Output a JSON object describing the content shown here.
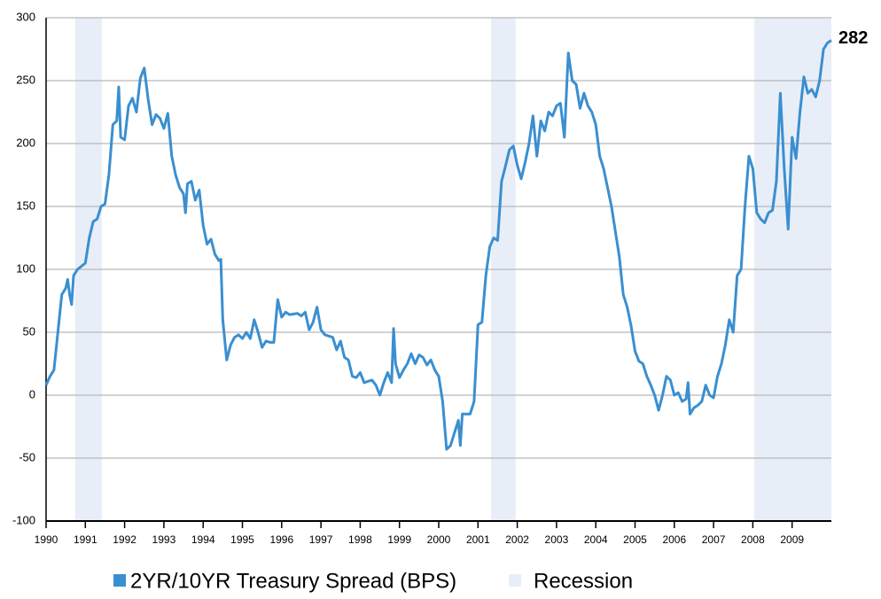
{
  "chart_data": {
    "type": "line",
    "series": [
      {
        "name": "2YR/10YR Treasury Spread (BPS)",
        "color": "#3a8fd0",
        "x": [
          1990.0,
          1990.1,
          1990.2,
          1990.3,
          1990.4,
          1990.5,
          1990.55,
          1990.6,
          1990.65,
          1990.7,
          1990.8,
          1991.0,
          1991.1,
          1991.2,
          1991.3,
          1991.4,
          1991.5,
          1991.6,
          1991.7,
          1991.8,
          1991.85,
          1991.9,
          1992.0,
          1992.1,
          1992.2,
          1992.3,
          1992.4,
          1992.5,
          1992.6,
          1992.7,
          1992.8,
          1992.9,
          1993.0,
          1993.1,
          1993.2,
          1993.3,
          1993.4,
          1993.5,
          1993.55,
          1993.6,
          1993.7,
          1993.8,
          1993.9,
          1994.0,
          1994.1,
          1994.2,
          1994.3,
          1994.4,
          1994.45,
          1994.5,
          1994.6,
          1994.7,
          1994.8,
          1994.9,
          1995.0,
          1995.1,
          1995.2,
          1995.3,
          1995.4,
          1995.5,
          1995.6,
          1995.7,
          1995.8,
          1995.9,
          1996.0,
          1996.1,
          1996.2,
          1996.4,
          1996.5,
          1996.6,
          1996.7,
          1996.8,
          1996.9,
          1997.0,
          1997.1,
          1997.3,
          1997.4,
          1997.5,
          1997.6,
          1997.7,
          1997.8,
          1997.9,
          1998.0,
          1998.1,
          1998.3,
          1998.4,
          1998.5,
          1998.6,
          1998.7,
          1998.8,
          1998.85,
          1998.9,
          1999.0,
          1999.1,
          1999.2,
          1999.3,
          1999.4,
          1999.5,
          1999.6,
          1999.7,
          1999.8,
          1999.9,
          2000.0,
          2000.1,
          2000.2,
          2000.3,
          2000.4,
          2000.5,
          2000.55,
          2000.6,
          2000.8,
          2000.9,
          2001.0,
          2001.1,
          2001.2,
          2001.3,
          2001.4,
          2001.5,
          2001.6,
          2001.7,
          2001.8,
          2001.9,
          2002.0,
          2002.1,
          2002.2,
          2002.3,
          2002.4,
          2002.5,
          2002.6,
          2002.7,
          2002.8,
          2002.9,
          2003.0,
          2003.1,
          2003.2,
          2003.3,
          2003.4,
          2003.5,
          2003.6,
          2003.7,
          2003.8,
          2003.9,
          2004.0,
          2004.1,
          2004.2,
          2004.3,
          2004.4,
          2004.5,
          2004.6,
          2004.7,
          2004.8,
          2004.9,
          2005.0,
          2005.1,
          2005.2,
          2005.3,
          2005.4,
          2005.5,
          2005.6,
          2005.7,
          2005.8,
          2005.9,
          2006.0,
          2006.1,
          2006.2,
          2006.3,
          2006.35,
          2006.4,
          2006.5,
          2006.6,
          2006.7,
          2006.8,
          2006.9,
          2007.0,
          2007.1,
          2007.2,
          2007.3,
          2007.4,
          2007.5,
          2007.6,
          2007.7,
          2007.8,
          2007.9,
          2008.0,
          2008.1,
          2008.2,
          2008.3,
          2008.4,
          2008.5,
          2008.6,
          2008.7,
          2008.8,
          2008.9,
          2009.0,
          2009.1,
          2009.2,
          2009.3,
          2009.4,
          2009.5,
          2009.6,
          2009.7,
          2009.8,
          2009.9,
          2010.0
        ],
        "values": [
          8,
          15,
          20,
          50,
          80,
          85,
          92,
          80,
          72,
          95,
          100,
          105,
          125,
          138,
          140,
          150,
          152,
          175,
          215,
          218,
          245,
          205,
          203,
          230,
          236,
          225,
          252,
          260,
          235,
          215,
          223,
          220,
          212,
          224,
          190,
          175,
          165,
          160,
          145,
          168,
          170,
          155,
          163,
          135,
          120,
          124,
          112,
          107,
          108,
          60,
          28,
          40,
          46,
          48,
          45,
          50,
          45,
          60,
          50,
          38,
          43,
          42,
          42,
          76,
          62,
          66,
          64,
          65,
          63,
          66,
          52,
          58,
          70,
          52,
          48,
          46,
          36,
          43,
          30,
          28,
          15,
          14,
          18,
          10,
          12,
          8,
          0,
          10,
          18,
          10,
          53,
          25,
          14,
          20,
          25,
          33,
          25,
          32,
          30,
          24,
          28,
          20,
          15,
          -5,
          -43,
          -40,
          -30,
          -20,
          -40,
          -15,
          -15,
          -5,
          56,
          58,
          95,
          118,
          125,
          123,
          170,
          182,
          195,
          198,
          183,
          172,
          185,
          200,
          222,
          190,
          218,
          210,
          225,
          222,
          230,
          232,
          205,
          272,
          250,
          247,
          228,
          240,
          230,
          225,
          215,
          190,
          180,
          165,
          150,
          130,
          110,
          80,
          70,
          55,
          35,
          27,
          25,
          15,
          8,
          0,
          -12,
          0,
          15,
          12,
          0,
          2,
          -5,
          -3,
          10,
          -15,
          -10,
          -8,
          -5,
          8,
          0,
          -2,
          15,
          25,
          40,
          60,
          50,
          95,
          100,
          150,
          190,
          180,
          145,
          140,
          137,
          145,
          147,
          170,
          240,
          180,
          132,
          205,
          188,
          225,
          253,
          240,
          243,
          237,
          250,
          275,
          280,
          282
        ]
      }
    ],
    "shading": {
      "name": "Recession",
      "color": "#e8eef8",
      "ranges": [
        [
          1990.74,
          1991.42
        ],
        [
          2001.33,
          2001.96
        ],
        [
          2008.04,
          2010
        ]
      ]
    },
    "xlim": [
      1990,
      2010
    ],
    "xticks": [
      1990,
      1991,
      1992,
      1993,
      1994,
      1995,
      1996,
      1997,
      1998,
      1999,
      2000,
      2001,
      2002,
      2003,
      2004,
      2005,
      2006,
      2007,
      2008,
      2009
    ],
    "ylim": [
      -100,
      300
    ],
    "yticks": [
      -100,
      -50,
      0,
      50,
      100,
      150,
      200,
      250,
      300
    ],
    "grid": true
  }
}
